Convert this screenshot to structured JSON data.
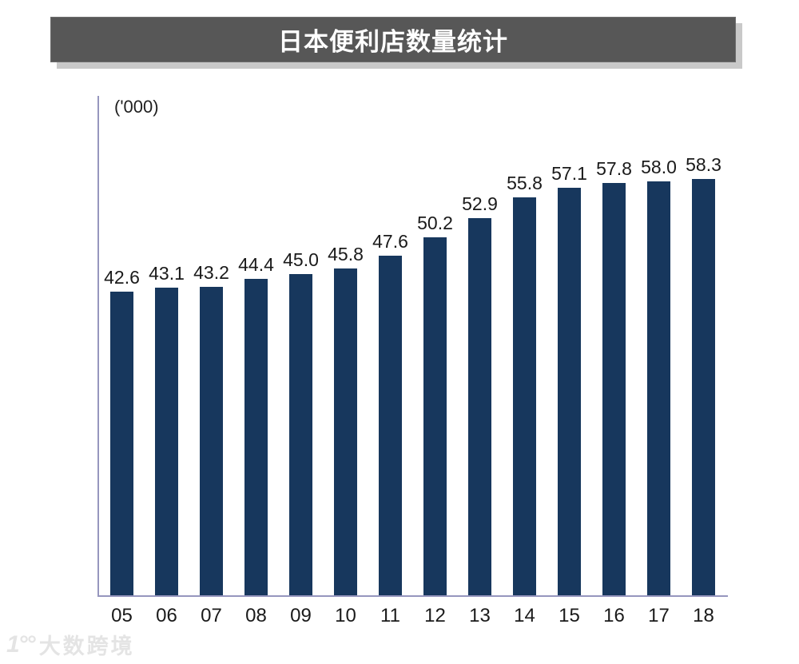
{
  "header": {
    "title": "日本便利店数量统计",
    "bar_color": "#575757",
    "shadow_color": "#c9c9c9",
    "text_color": "#ffffff"
  },
  "chart_data": {
    "type": "bar",
    "title": "日本便利店数量统计",
    "unit_label": "('000)",
    "xlabel": "",
    "ylabel": "('000)",
    "categories": [
      "05",
      "06",
      "07",
      "08",
      "09",
      "10",
      "11",
      "12",
      "13",
      "14",
      "15",
      "16",
      "17",
      "18"
    ],
    "values": [
      42.6,
      43.1,
      43.2,
      44.4,
      45.0,
      45.8,
      47.6,
      50.2,
      52.9,
      55.8,
      57.1,
      57.8,
      58.0,
      58.3
    ],
    "value_labels": [
      "42.6",
      "43.1",
      "43.2",
      "44.4",
      "45.0",
      "45.8",
      "47.6",
      "50.2",
      "52.9",
      "55.8",
      "57.1",
      "57.8",
      "58.0",
      "58.3"
    ],
    "ylim": [
      0,
      70
    ],
    "grid": false,
    "legend": null,
    "bar_color": "#17375d",
    "axis_color": "#9696be",
    "label_color": "#1a1a1a"
  },
  "watermark": {
    "logo": "1°°",
    "text": "大数跨境",
    "color": "#e4e4e4"
  }
}
